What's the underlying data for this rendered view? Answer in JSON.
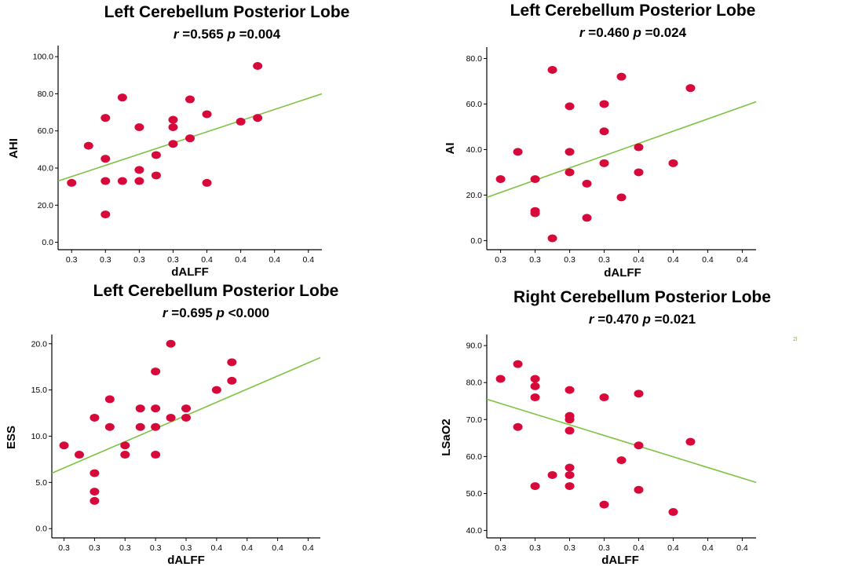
{
  "colors": {
    "point": "#d6093a",
    "fit": "#7dc242",
    "axis": "#000000"
  },
  "chart_data": [
    {
      "type": "scatter",
      "title": "Left Cerebellum Posterior Lobe",
      "stat_r": "0.565",
      "stat_p": "=0.004",
      "xlabel": "dALFF",
      "ylabel": "AHI",
      "x_tick_labels": [
        "0.3",
        "0.3",
        "0.3",
        "0.3",
        "0.4",
        "0.4",
        "0.4",
        "0.4"
      ],
      "x_tick_values": [
        0,
        1,
        2,
        3,
        4,
        5,
        6,
        7
      ],
      "xlim": [
        -0.4,
        7.4
      ],
      "y_tick_labels": [
        "0.0",
        "20.0",
        "40.0",
        "60.0",
        "80.0",
        "100.0"
      ],
      "ylim": [
        -4,
        106
      ],
      "points": [
        [
          0,
          32
        ],
        [
          0.5,
          52
        ],
        [
          1,
          67
        ],
        [
          1,
          45
        ],
        [
          1,
          33
        ],
        [
          1,
          15
        ],
        [
          1.5,
          78
        ],
        [
          1.5,
          33
        ],
        [
          2,
          62
        ],
        [
          2,
          39
        ],
        [
          2,
          33
        ],
        [
          2.5,
          47
        ],
        [
          2.5,
          36
        ],
        [
          3,
          66
        ],
        [
          3,
          62
        ],
        [
          3,
          53
        ],
        [
          3.5,
          77
        ],
        [
          3.5,
          56
        ],
        [
          4,
          69
        ],
        [
          4,
          32
        ],
        [
          5,
          65
        ],
        [
          5.5,
          95
        ],
        [
          5.5,
          67
        ]
      ],
      "fit": [
        [
          -0.4,
          33
        ],
        [
          7.4,
          80
        ]
      ]
    },
    {
      "type": "scatter",
      "title": "Left Cerebellum Posterior Lobe",
      "stat_r": "0.460",
      "stat_p": "=0.024",
      "xlabel": "dALFF",
      "ylabel": "AI",
      "x_tick_labels": [
        "0.3",
        "0.3",
        "0.3",
        "0.3",
        "0.4",
        "0.4",
        "0.4",
        "0.4"
      ],
      "x_tick_values": [
        0,
        1,
        2,
        3,
        4,
        5,
        6,
        7
      ],
      "xlim": [
        -0.4,
        7.4
      ],
      "y_tick_labels": [
        "0.0",
        "20.0",
        "40.0",
        "60.0",
        "80.0"
      ],
      "ylim": [
        -4,
        85
      ],
      "points": [
        [
          0,
          27
        ],
        [
          0.5,
          39
        ],
        [
          1,
          27
        ],
        [
          1,
          13
        ],
        [
          1,
          12
        ],
        [
          1.5,
          75
        ],
        [
          1.5,
          1
        ],
        [
          2,
          59
        ],
        [
          2,
          39
        ],
        [
          2,
          30
        ],
        [
          2.5,
          25
        ],
        [
          2.5,
          10
        ],
        [
          3,
          60
        ],
        [
          3,
          48
        ],
        [
          3,
          34
        ],
        [
          3.5,
          72
        ],
        [
          3.5,
          19
        ],
        [
          4,
          41
        ],
        [
          4,
          30
        ],
        [
          5,
          34
        ],
        [
          5.5,
          67
        ]
      ],
      "fit": [
        [
          -0.4,
          19
        ],
        [
          7.4,
          61
        ]
      ]
    },
    {
      "type": "scatter",
      "title": "Left Cerebellum Posterior Lobe",
      "stat_r": "0.695",
      "stat_p": "<0.000",
      "xlabel": "dALFF",
      "ylabel": "ESS",
      "x_tick_labels": [
        "0.3",
        "0.3",
        "0.3",
        "0.3",
        "0.3",
        "0.4",
        "0.4",
        "0.4",
        "0.4"
      ],
      "x_tick_values": [
        0,
        1,
        2,
        3,
        4,
        5,
        6,
        7,
        8
      ],
      "xlim": [
        -0.4,
        8.4
      ],
      "y_tick_labels": [
        "0.0",
        "5.0",
        "10.0",
        "15.0",
        "20.0"
      ],
      "y_tick_values": [
        0,
        5,
        10,
        15,
        20
      ],
      "ylim": [
        -1,
        21
      ],
      "points": [
        [
          0,
          9
        ],
        [
          0.5,
          8
        ],
        [
          1,
          12
        ],
        [
          1,
          6
        ],
        [
          1,
          4
        ],
        [
          1,
          3
        ],
        [
          1.5,
          14
        ],
        [
          1.5,
          11
        ],
        [
          2,
          9
        ],
        [
          2,
          8
        ],
        [
          2.5,
          13
        ],
        [
          2.5,
          11
        ],
        [
          3,
          17
        ],
        [
          3,
          13
        ],
        [
          3,
          11
        ],
        [
          3,
          8
        ],
        [
          3.5,
          20
        ],
        [
          3.5,
          12
        ],
        [
          4,
          13
        ],
        [
          4,
          12
        ],
        [
          5,
          15
        ],
        [
          5.5,
          18
        ],
        [
          5.5,
          16
        ]
      ],
      "fit": [
        [
          -0.4,
          6
        ],
        [
          8.4,
          18.5
        ]
      ]
    },
    {
      "type": "scatter",
      "title": "Right Cerebellum Posterior Lobe",
      "stat_r": "0.470",
      "stat_p": "=0.021",
      "xlabel": "dALFF",
      "ylabel": "LSaO2",
      "x_tick_labels": [
        "0.3",
        "0.3",
        "0.3",
        "0.3",
        "0.4",
        "0.4",
        "0.4",
        "0.4"
      ],
      "x_tick_values": [
        0,
        1,
        2,
        3,
        4,
        5,
        6,
        7
      ],
      "xlim": [
        -0.4,
        7.4
      ],
      "y_tick_labels": [
        "40.0",
        "50.0",
        "60.0",
        "70.0",
        "80.0",
        "90.0"
      ],
      "ylim": [
        38,
        93
      ],
      "points": [
        [
          0,
          81
        ],
        [
          0.5,
          85
        ],
        [
          0.5,
          68
        ],
        [
          1,
          81
        ],
        [
          1,
          79
        ],
        [
          1,
          76
        ],
        [
          1,
          52
        ],
        [
          1.5,
          55
        ],
        [
          2,
          78
        ],
        [
          2,
          71
        ],
        [
          2,
          70
        ],
        [
          2,
          67
        ],
        [
          2,
          57
        ],
        [
          2,
          55
        ],
        [
          2,
          52
        ],
        [
          3,
          76
        ],
        [
          3,
          47
        ],
        [
          3.5,
          59
        ],
        [
          4,
          77
        ],
        [
          4,
          63
        ],
        [
          4,
          51
        ],
        [
          5,
          45
        ],
        [
          5.5,
          64
        ]
      ],
      "fit": [
        [
          -0.4,
          75.5
        ],
        [
          7.4,
          53
        ]
      ]
    }
  ],
  "stray_mark": "2l"
}
